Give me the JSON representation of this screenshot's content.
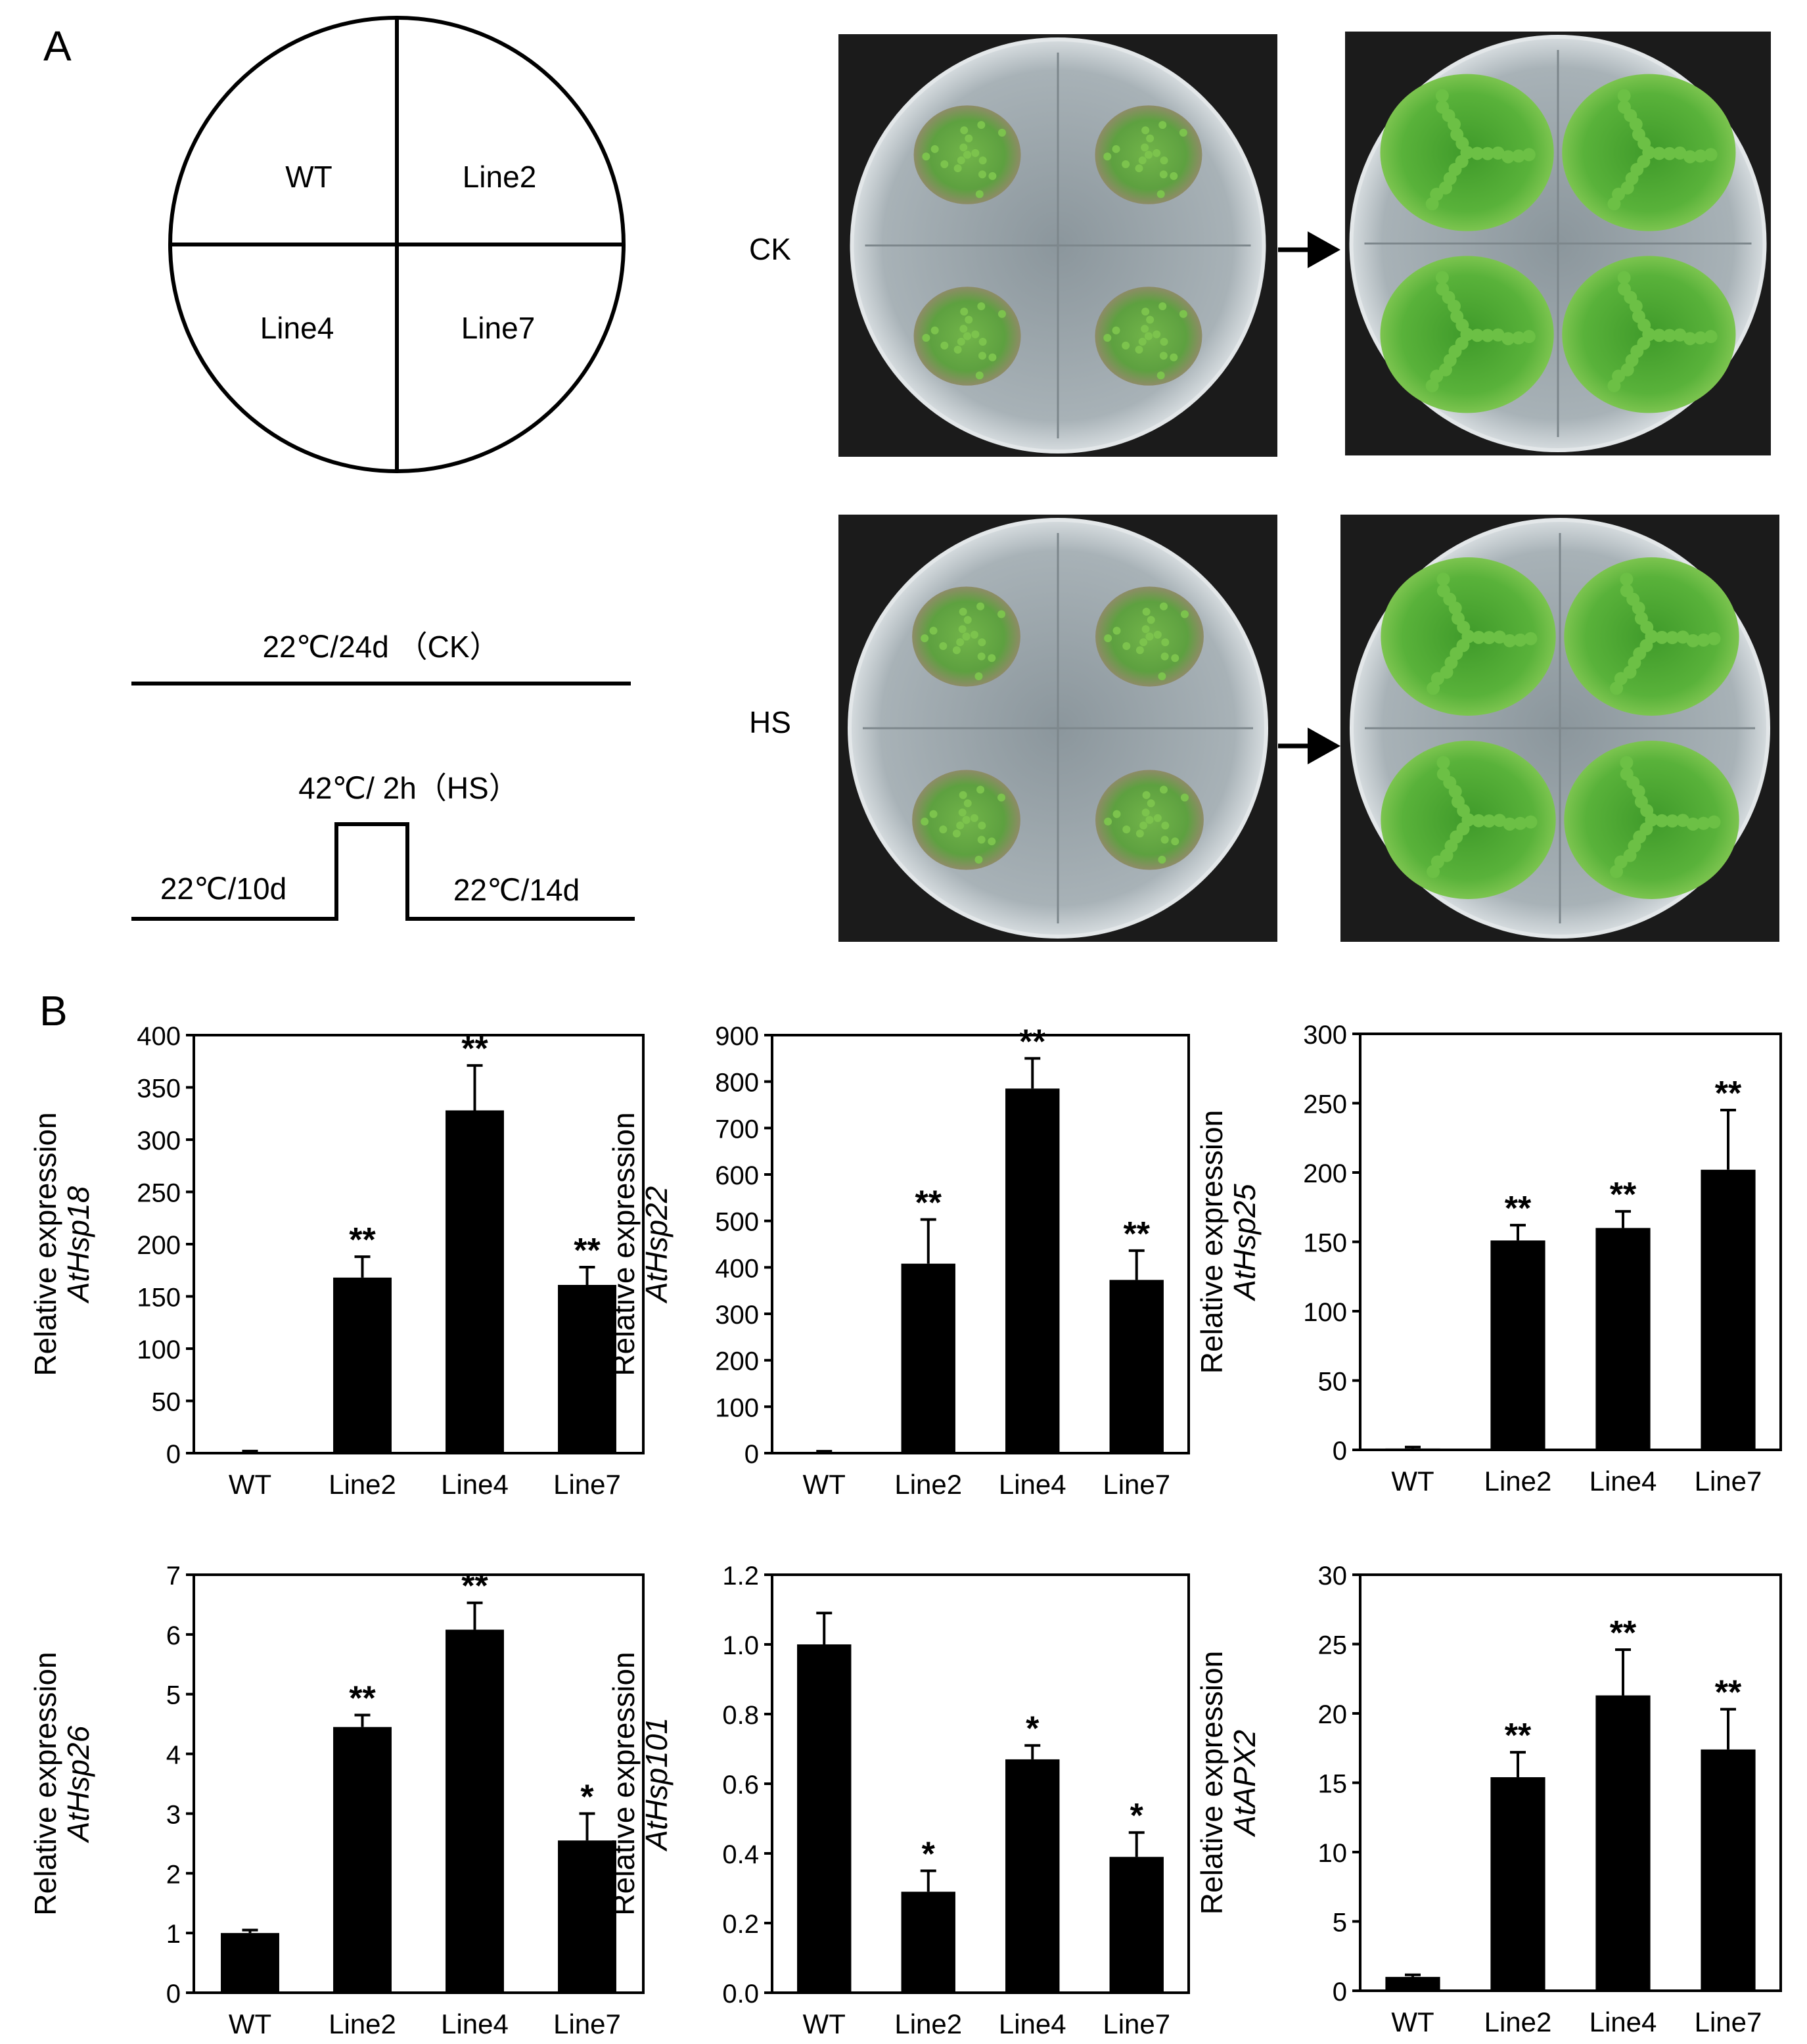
{
  "panel_a": {
    "label": "A",
    "layout": {
      "quadrants": [
        "WT",
        "Line2",
        "Line4",
        "Line7"
      ]
    },
    "treatments": {
      "ck": "22℃/24d （CK）",
      "hs": "42℃/ 2h（HS）",
      "pre": "22℃/10d",
      "post": "22℃/14d"
    },
    "rows": [
      {
        "label": "CK"
      },
      {
        "label": "HS"
      }
    ],
    "colors": {
      "plate_bg": "#1c1c1c",
      "dish": "#a9b3b8",
      "seedling": "#5aa83a",
      "seedling_dark": "#3f8f2a"
    }
  },
  "panel_b": {
    "label": "B",
    "ylabel_common": "Relative expression"
  },
  "chart_data": [
    {
      "type": "bar",
      "gene": "AtHsp18",
      "ylabel": "Relative expression",
      "categories": [
        "WT",
        "Line2",
        "Line4",
        "Line7"
      ],
      "values": [
        1,
        168,
        328,
        161
      ],
      "errors": [
        1,
        20,
        43,
        17
      ],
      "significance": [
        "",
        "**",
        "**",
        "**"
      ],
      "ylim": [
        0,
        400
      ],
      "yticks": [
        0,
        50,
        100,
        150,
        200,
        250,
        300,
        350,
        400
      ],
      "tick_format": "int"
    },
    {
      "type": "bar",
      "gene": "AtHsp22",
      "ylabel": "Relative expression",
      "categories": [
        "WT",
        "Line2",
        "Line4",
        "Line7"
      ],
      "values": [
        2,
        408,
        785,
        373
      ],
      "errors": [
        2,
        95,
        65,
        63
      ],
      "significance": [
        "",
        "**",
        "**",
        "**"
      ],
      "ylim": [
        0,
        900
      ],
      "yticks": [
        0,
        100,
        200,
        300,
        400,
        500,
        600,
        700,
        800,
        900
      ],
      "tick_format": "int"
    },
    {
      "type": "bar",
      "gene": "AtHsp25",
      "ylabel": "Relative expression",
      "categories": [
        "WT",
        "Line2",
        "Line4",
        "Line7"
      ],
      "values": [
        1,
        151,
        160,
        202
      ],
      "errors": [
        1,
        11,
        12,
        43
      ],
      "significance": [
        "",
        "**",
        "**",
        "**"
      ],
      "ylim": [
        0,
        300
      ],
      "yticks": [
        0,
        50,
        100,
        150,
        200,
        250,
        300
      ],
      "tick_format": "int"
    },
    {
      "type": "bar",
      "gene": "AtHsp26",
      "ylabel": "Relative expression",
      "categories": [
        "WT",
        "Line2",
        "Line4",
        "Line7"
      ],
      "values": [
        1.0,
        4.45,
        6.08,
        2.55
      ],
      "errors": [
        0.05,
        0.2,
        0.45,
        0.45
      ],
      "significance": [
        "",
        "**",
        "**",
        "*"
      ],
      "ylim": [
        0,
        7
      ],
      "yticks": [
        0,
        1,
        2,
        3,
        4,
        5,
        6,
        7
      ],
      "tick_format": "int"
    },
    {
      "type": "bar",
      "gene": "AtHsp101",
      "ylabel": "Relative expression",
      "categories": [
        "WT",
        "Line2",
        "Line4",
        "Line7"
      ],
      "values": [
        1.0,
        0.29,
        0.67,
        0.39
      ],
      "errors": [
        0.09,
        0.06,
        0.04,
        0.07
      ],
      "significance": [
        "",
        "*",
        "*",
        "*"
      ],
      "ylim": [
        0,
        1.2
      ],
      "yticks": [
        0,
        0.2,
        0.4,
        0.6,
        0.8,
        1.0,
        1.2
      ],
      "tick_format": "one_decimal"
    },
    {
      "type": "bar",
      "gene": "AtAPX2",
      "ylabel": "Relative expression",
      "categories": [
        "WT",
        "Line2",
        "Line4",
        "Line7"
      ],
      "values": [
        1.0,
        15.4,
        21.3,
        17.4
      ],
      "errors": [
        0.15,
        1.8,
        3.3,
        2.9
      ],
      "significance": [
        "",
        "**",
        "**",
        "**"
      ],
      "ylim": [
        0,
        30
      ],
      "yticks": [
        0,
        5,
        10,
        15,
        20,
        25,
        30
      ],
      "tick_format": "int"
    }
  ]
}
